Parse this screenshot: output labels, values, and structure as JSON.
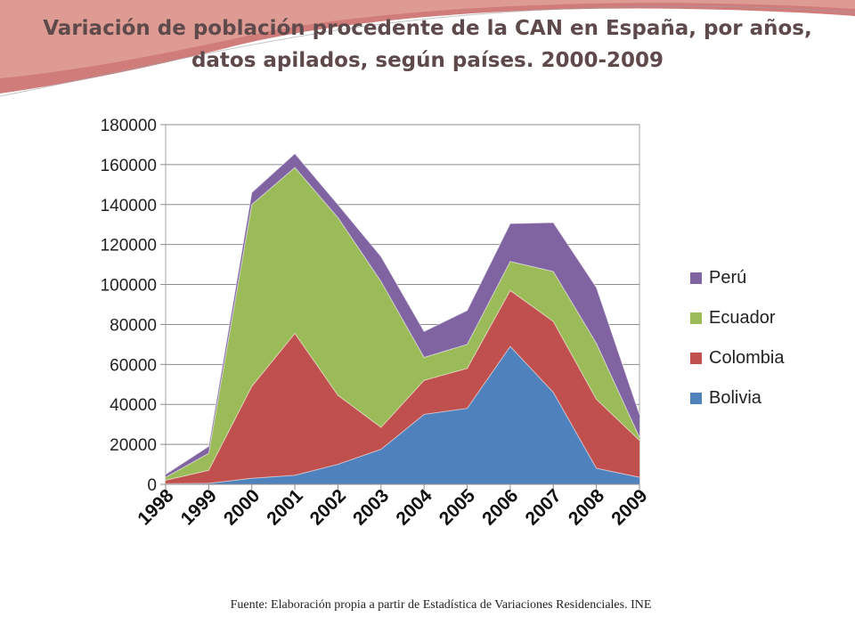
{
  "slide": {
    "title_line1": "Variación de población  procedente de la CAN en España, por años,",
    "title_line2": "datos apilados, según países. 2000-2009",
    "source": "Fuente: Elaboración propia a partir de Estadística de Variaciones Residenciales. INE"
  },
  "colors": {
    "title": "#5e4a4a",
    "decor": "#c0504d"
  },
  "chart_data": {
    "type": "area",
    "stacked": true,
    "categories": [
      "1998",
      "1999",
      "2000",
      "2001",
      "2002",
      "2003",
      "2004",
      "2005",
      "2006",
      "2007",
      "2008",
      "2009"
    ],
    "ylim": [
      0,
      180000
    ],
    "yticks": [
      0,
      20000,
      40000,
      60000,
      80000,
      100000,
      120000,
      140000,
      160000,
      180000
    ],
    "grid": true,
    "legend": "right",
    "series": [
      {
        "name": "Bolivia",
        "color": "#4f81bd",
        "values": [
          300,
          500,
          3000,
          4500,
          10000,
          17500,
          35000,
          38000,
          69000,
          46000,
          8000,
          3500
        ]
      },
      {
        "name": "Colombia",
        "color": "#c0504d",
        "values": [
          1700,
          6500,
          46000,
          71000,
          34500,
          11000,
          17000,
          20000,
          28000,
          35500,
          34500,
          18500
        ]
      },
      {
        "name": "Ecuador",
        "color": "#9bbb59",
        "values": [
          1500,
          8500,
          91000,
          83000,
          89000,
          73000,
          11500,
          12000,
          14500,
          25000,
          28000,
          1500
        ]
      },
      {
        "name": "Perú",
        "color": "#8064a2",
        "values": [
          1500,
          3500,
          6000,
          7000,
          6500,
          12500,
          13000,
          17000,
          19000,
          24500,
          28000,
          11500
        ]
      }
    ]
  }
}
